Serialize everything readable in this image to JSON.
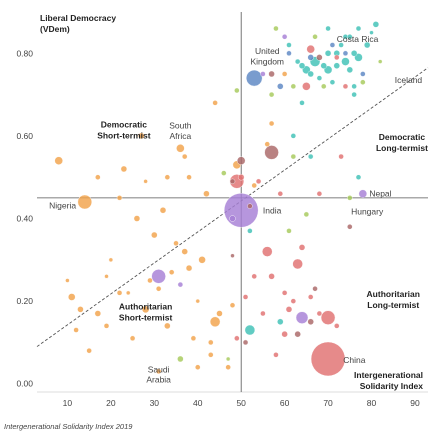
{
  "chart_data": {
    "type": "scatter",
    "y_axis_title_line1": "Liberal Democracy",
    "y_axis_title_line2": "(VDem)",
    "x_axis_title_line1": "Intergenerational",
    "x_axis_title_line2": "Solidarity Index",
    "caption": "Intergenerational Solidarity Index 2019",
    "xlim": [
      3,
      93
    ],
    "ylim": [
      -0.02,
      0.9
    ],
    "x_ticks": [
      "10",
      "20",
      "30",
      "40",
      "50",
      "60",
      "70",
      "80",
      "90"
    ],
    "y_ticks": [
      "0.00",
      "0.20",
      "0.40",
      "0.60",
      "0.80"
    ],
    "reference_x": 50,
    "reference_y": 0.45,
    "trend_line": {
      "x1": 3,
      "y1": 0.09,
      "x2": 93,
      "y2": 0.765
    },
    "grid": false,
    "quadrant_labels": [
      {
        "line1": "Democratic",
        "line2": "Short-termist",
        "x": 23,
        "y": 0.62,
        "anchor": "middle"
      },
      {
        "line1": "Democratic",
        "line2": "Long-termist",
        "x": 87,
        "y": 0.59,
        "anchor": "middle"
      },
      {
        "line1": "Authoritarian",
        "line2": "Short-termist",
        "x": 28,
        "y": 0.18,
        "anchor": "middle"
      },
      {
        "line1": "Authoritarian",
        "line2": "Long-termist",
        "x": 85,
        "y": 0.21,
        "anchor": "middle"
      }
    ],
    "country_labels": [
      {
        "text": "Costa Rica",
        "x": 72,
        "y": 0.835,
        "anchor": "start"
      },
      {
        "text": "United",
        "x": 56,
        "y": 0.805,
        "anchor": "middle"
      },
      {
        "text": "Kingdom",
        "x": 56,
        "y": 0.78,
        "anchor": "middle"
      },
      {
        "text": "Iceland",
        "x": 88.5,
        "y": 0.735,
        "anchor": "middle"
      },
      {
        "text": "South",
        "x": 36,
        "y": 0.625,
        "anchor": "middle"
      },
      {
        "text": "Africa",
        "x": 36,
        "y": 0.6,
        "anchor": "middle"
      },
      {
        "text": "Nepal",
        "x": 79.5,
        "y": 0.46,
        "anchor": "start"
      },
      {
        "text": "Nigeria",
        "x": 12,
        "y": 0.432,
        "anchor": "end"
      },
      {
        "text": "India",
        "x": 55,
        "y": 0.42,
        "anchor": "start"
      },
      {
        "text": "Hungary",
        "x": 79,
        "y": 0.417,
        "anchor": "middle"
      },
      {
        "text": "China",
        "x": 73.5,
        "y": 0.057,
        "anchor": "start"
      },
      {
        "text": "Saudi",
        "x": 31,
        "y": 0.035,
        "anchor": "middle"
      },
      {
        "text": "Arabia",
        "x": 31,
        "y": 0.01,
        "anchor": "middle"
      }
    ],
    "series": [
      {
        "color": "#f2a24a",
        "points": [
          [
            8,
            0.54,
            4
          ],
          [
            14,
            0.44,
            7
          ],
          [
            12,
            0.13,
            2.5
          ],
          [
            13,
            0.18,
            3
          ],
          [
            15,
            0.08,
            2.5
          ],
          [
            17,
            0.5,
            2.5
          ],
          [
            17,
            0.17,
            3
          ],
          [
            19,
            0.26,
            2
          ],
          [
            19,
            0.14,
            2.5
          ],
          [
            20,
            0.3,
            2
          ],
          [
            22,
            0.45,
            2.5
          ],
          [
            22,
            0.22,
            2.5
          ],
          [
            23,
            0.52,
            3
          ],
          [
            24,
            0.22,
            2
          ],
          [
            26,
            0.4,
            3
          ],
          [
            27,
            0.6,
            3
          ],
          [
            28,
            0.49,
            2
          ],
          [
            28,
            0.18,
            3.5
          ],
          [
            29,
            0.25,
            2.5
          ],
          [
            30,
            0.36,
            3
          ],
          [
            31,
            0.23,
            2.5
          ],
          [
            31,
            0.03,
            2.5
          ],
          [
            32,
            0.42,
            3
          ],
          [
            33,
            0.14,
            3
          ],
          [
            33,
            0.5,
            2.5
          ],
          [
            34,
            0.27,
            2.5
          ],
          [
            35,
            0.34,
            2.5
          ],
          [
            36,
            0.57,
            4
          ],
          [
            37,
            0.32,
            3
          ],
          [
            37,
            0.55,
            2.5
          ],
          [
            38,
            0.5,
            2.5
          ],
          [
            38,
            0.28,
            3
          ],
          [
            39,
            0.11,
            2.5
          ],
          [
            40,
            0.2,
            2
          ],
          [
            40,
            0.04,
            2.5
          ],
          [
            41,
            0.3,
            3.5
          ],
          [
            42,
            0.46,
            3
          ],
          [
            43,
            0.07,
            2.5
          ],
          [
            43,
            0.1,
            2.5
          ],
          [
            44,
            0.68,
            2.5
          ],
          [
            44,
            0.15,
            5
          ],
          [
            45,
            0.17,
            3
          ],
          [
            47,
            0.04,
            2.5
          ],
          [
            48,
            0.19,
            2.5
          ],
          [
            49,
            0.53,
            4
          ],
          [
            53,
            0.48,
            2.5
          ],
          [
            56,
            0.58,
            2.5
          ],
          [
            57,
            0.63,
            2.5
          ],
          [
            60,
            0.75,
            2.5
          ],
          [
            10,
            0.25,
            2
          ],
          [
            25,
            0.11,
            2.5
          ],
          [
            11,
            0.21,
            3.5
          ]
        ]
      },
      {
        "color": "#e07070",
        "points": [
          [
            49,
            0.49,
            7
          ],
          [
            50,
            0.5,
            3
          ],
          [
            54,
            0.49,
            2.5
          ],
          [
            56,
            0.32,
            5
          ],
          [
            57,
            0.26,
            3
          ],
          [
            60,
            0.22,
            2.5
          ],
          [
            61,
            0.18,
            3
          ],
          [
            62,
            0.2,
            2.5
          ],
          [
            63,
            0.29,
            5
          ],
          [
            64,
            0.33,
            3
          ],
          [
            66,
            0.21,
            2.5
          ],
          [
            68,
            0.17,
            2.5
          ],
          [
            70,
            0.06,
            17
          ],
          [
            70,
            0.16,
            7
          ],
          [
            72,
            0.14,
            2.5
          ],
          [
            74,
            0.72,
            2.5
          ],
          [
            59,
            0.46,
            2.5
          ],
          [
            49,
            0.11,
            2.5
          ],
          [
            55,
            0.17,
            2.5
          ],
          [
            60,
            0.12,
            3
          ],
          [
            58,
            0.07,
            2.5
          ],
          [
            73,
            0.55,
            2.5
          ],
          [
            51,
            0.21,
            2.5
          ],
          [
            66,
            0.81,
            4
          ],
          [
            65,
            0.72,
            4
          ],
          [
            53,
            0.26,
            2.5
          ],
          [
            72,
            0.79,
            2.5
          ],
          [
            68,
            0.46,
            2.5
          ]
        ]
      },
      {
        "color": "#aa6666",
        "points": [
          [
            48,
            0.49,
            2.5
          ],
          [
            50,
            0.54,
            4
          ],
          [
            57,
            0.56,
            7
          ],
          [
            52,
            0.43,
            2.5
          ],
          [
            48,
            0.31,
            2
          ],
          [
            67,
            0.23,
            2.5
          ],
          [
            63,
            0.12,
            3
          ],
          [
            51,
            0.1,
            2.5
          ],
          [
            66,
            0.15,
            3
          ],
          [
            75,
            0.38,
            2.5
          ],
          [
            57,
            0.75,
            3
          ],
          [
            68,
            0.79,
            3
          ]
        ]
      },
      {
        "color": "#3ec1b6",
        "points": [
          [
            63,
            0.78,
            2.5
          ],
          [
            64,
            0.77,
            3
          ],
          [
            65,
            0.76,
            4
          ],
          [
            66,
            0.75,
            3
          ],
          [
            67,
            0.78,
            5
          ],
          [
            68,
            0.74,
            2.5
          ],
          [
            69,
            0.77,
            3
          ],
          [
            70,
            0.76,
            4
          ],
          [
            70,
            0.8,
            3
          ],
          [
            71,
            0.73,
            2.5
          ],
          [
            72,
            0.77,
            3
          ],
          [
            72,
            0.8,
            3
          ],
          [
            73,
            0.82,
            2.5
          ],
          [
            74,
            0.78,
            4
          ],
          [
            74,
            0.84,
            2.5
          ],
          [
            75,
            0.76,
            3
          ],
          [
            76,
            0.72,
            2.5
          ],
          [
            76,
            0.8,
            3
          ],
          [
            77,
            0.79,
            4
          ],
          [
            77,
            0.86,
            2.5
          ],
          [
            79,
            0.82,
            3
          ],
          [
            80,
            0.85,
            2
          ],
          [
            81,
            0.87,
            3
          ],
          [
            66,
            0.55,
            2.5
          ],
          [
            77,
            0.5,
            2.5
          ],
          [
            62,
            0.6,
            2.5
          ],
          [
            70,
            0.86,
            2.5
          ],
          [
            52,
            0.13,
            5
          ],
          [
            59,
            0.15,
            3
          ],
          [
            64,
            0.68,
            2.5
          ],
          [
            76,
            0.7,
            2.5
          ],
          [
            52,
            0.37,
            2.5
          ],
          [
            75,
            0.84,
            2.5
          ],
          [
            61,
            0.82,
            2.5
          ]
        ]
      },
      {
        "color": "#a6c95a",
        "points": [
          [
            36,
            0.06,
            3
          ],
          [
            67,
            0.84,
            2.5
          ],
          [
            69,
            0.72,
            2.5
          ],
          [
            78,
            0.73,
            2.5
          ],
          [
            62,
            0.72,
            2.5
          ],
          [
            57,
            0.7,
            2.5
          ],
          [
            49,
            0.71,
            2.5
          ],
          [
            82,
            0.78,
            2
          ],
          [
            58,
            0.86,
            2.5
          ],
          [
            62,
            0.55,
            2.5
          ],
          [
            75,
            0.45,
            2.5
          ],
          [
            61,
            0.37,
            2.5
          ],
          [
            46,
            0.51,
            2.5
          ],
          [
            47,
            0.06,
            2
          ],
          [
            65,
            0.41,
            2.5
          ]
        ]
      },
      {
        "color": "#a67fd6",
        "points": [
          [
            50,
            0.42,
            17
          ],
          [
            31,
            0.26,
            7
          ],
          [
            64,
            0.16,
            6
          ],
          [
            48,
            0.4,
            3
          ],
          [
            36,
            0.24,
            2.5
          ],
          [
            78,
            0.46,
            4
          ],
          [
            60,
            0.84,
            2.5
          ],
          [
            55,
            0.75,
            2.5
          ]
        ]
      },
      {
        "color": "#5b86c3",
        "points": [
          [
            53,
            0.74,
            8
          ],
          [
            66,
            0.79,
            3
          ],
          [
            71,
            0.82,
            2.5
          ],
          [
            74,
            0.8,
            2.5
          ],
          [
            59,
            0.72,
            3
          ],
          [
            61,
            0.8,
            2.5
          ],
          [
            78,
            0.75,
            2.5
          ]
        ]
      }
    ]
  }
}
